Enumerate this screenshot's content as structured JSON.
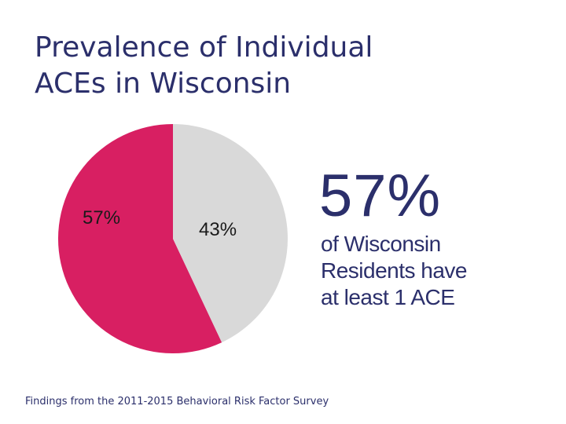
{
  "slide": {
    "title_lines": [
      "Prevalence of Individual",
      "ACEs in Wisconsin"
    ],
    "big_stat": "57%",
    "stat_description_lines": [
      "of Wisconsin",
      "Residents have",
      "at least 1 ACE"
    ],
    "footnote": "Findings from the 2011-2015 Behavioral Risk Factor Survey"
  },
  "chart_data": {
    "type": "pie",
    "title": "",
    "slices": [
      {
        "value": 57,
        "label": "57%",
        "color": "#d81f62"
      },
      {
        "value": 43,
        "label": "43%",
        "color": "#d9d9d9"
      }
    ],
    "start_angle": "12 o'clock",
    "direction": "counterclockwise"
  }
}
